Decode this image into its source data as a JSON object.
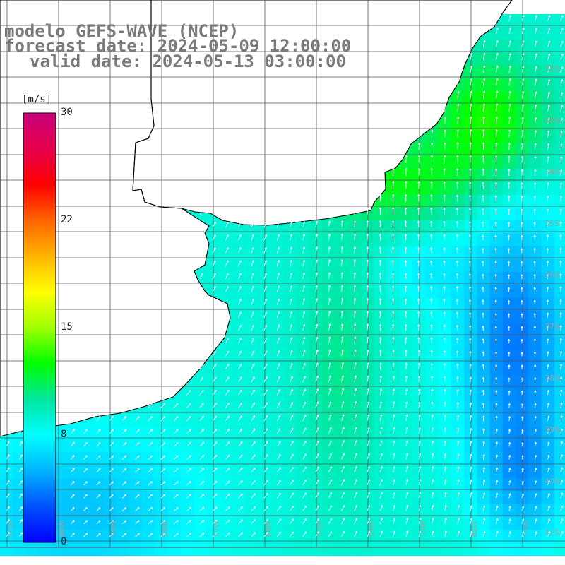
{
  "title": {
    "model": "modelo GEFS-WAVE (NCEP)",
    "forecast": "forecast date: 2024-05-09 12:00:00",
    "valid": "valid date: 2024-05-13 03:00:00"
  },
  "colorbar": {
    "unit": "[m/s]",
    "min": 0,
    "max": 30,
    "ticks": [
      {
        "value": 30,
        "label": "30"
      },
      {
        "value": 22,
        "label": "22"
      },
      {
        "value": 15,
        "label": "15"
      },
      {
        "value": 8,
        "label": "8"
      },
      {
        "value": 0,
        "label": "0"
      }
    ],
    "colors": [
      "#0000ff",
      "#0050ff",
      "#00b4ff",
      "#00ffff",
      "#00e6a0",
      "#00ff00",
      "#a0ff00",
      "#ffff00",
      "#ffb400",
      "#ff6400",
      "#ff0000",
      "#e6004c",
      "#c8007a"
    ]
  },
  "colors": {
    "land": "#ffffff",
    "coastline": "#000000",
    "grid": "#555555",
    "vector": "#ffffff",
    "title_text": "#7a7a7a"
  },
  "lat_labels": [
    "32S",
    "33S",
    "34S",
    "35S",
    "36S",
    "37S",
    "38S",
    "39S",
    "40S",
    "41S"
  ],
  "lon_labels": [
    "61W",
    "60W",
    "59W",
    "58W",
    "57W",
    "56W",
    "55W",
    "54W",
    "53W",
    "52W",
    "51W"
  ]
}
